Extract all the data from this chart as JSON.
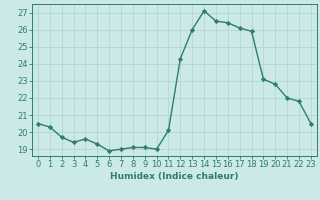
{
  "x": [
    0,
    1,
    2,
    3,
    4,
    5,
    6,
    7,
    8,
    9,
    10,
    11,
    12,
    13,
    14,
    15,
    16,
    17,
    18,
    19,
    20,
    21,
    22,
    23
  ],
  "y": [
    20.5,
    20.3,
    19.7,
    19.4,
    19.6,
    19.3,
    18.9,
    19.0,
    19.1,
    19.1,
    19.0,
    20.1,
    24.3,
    26.0,
    27.1,
    26.5,
    26.4,
    26.1,
    25.9,
    23.1,
    22.8,
    22.0,
    21.8,
    20.5
  ],
  "line_color": "#2e7d6e",
  "marker": "D",
  "markersize": 2.2,
  "linewidth": 1.0,
  "xlabel": "Humidex (Indice chaleur)",
  "ylabel_ticks": [
    19,
    20,
    21,
    22,
    23,
    24,
    25,
    26,
    27
  ],
  "ylim": [
    18.6,
    27.5
  ],
  "xlim": [
    -0.5,
    23.5
  ],
  "bg_color": "#cce9e9",
  "grid_color": "#b5d5d5",
  "label_fontsize": 6.5,
  "tick_fontsize": 6
}
